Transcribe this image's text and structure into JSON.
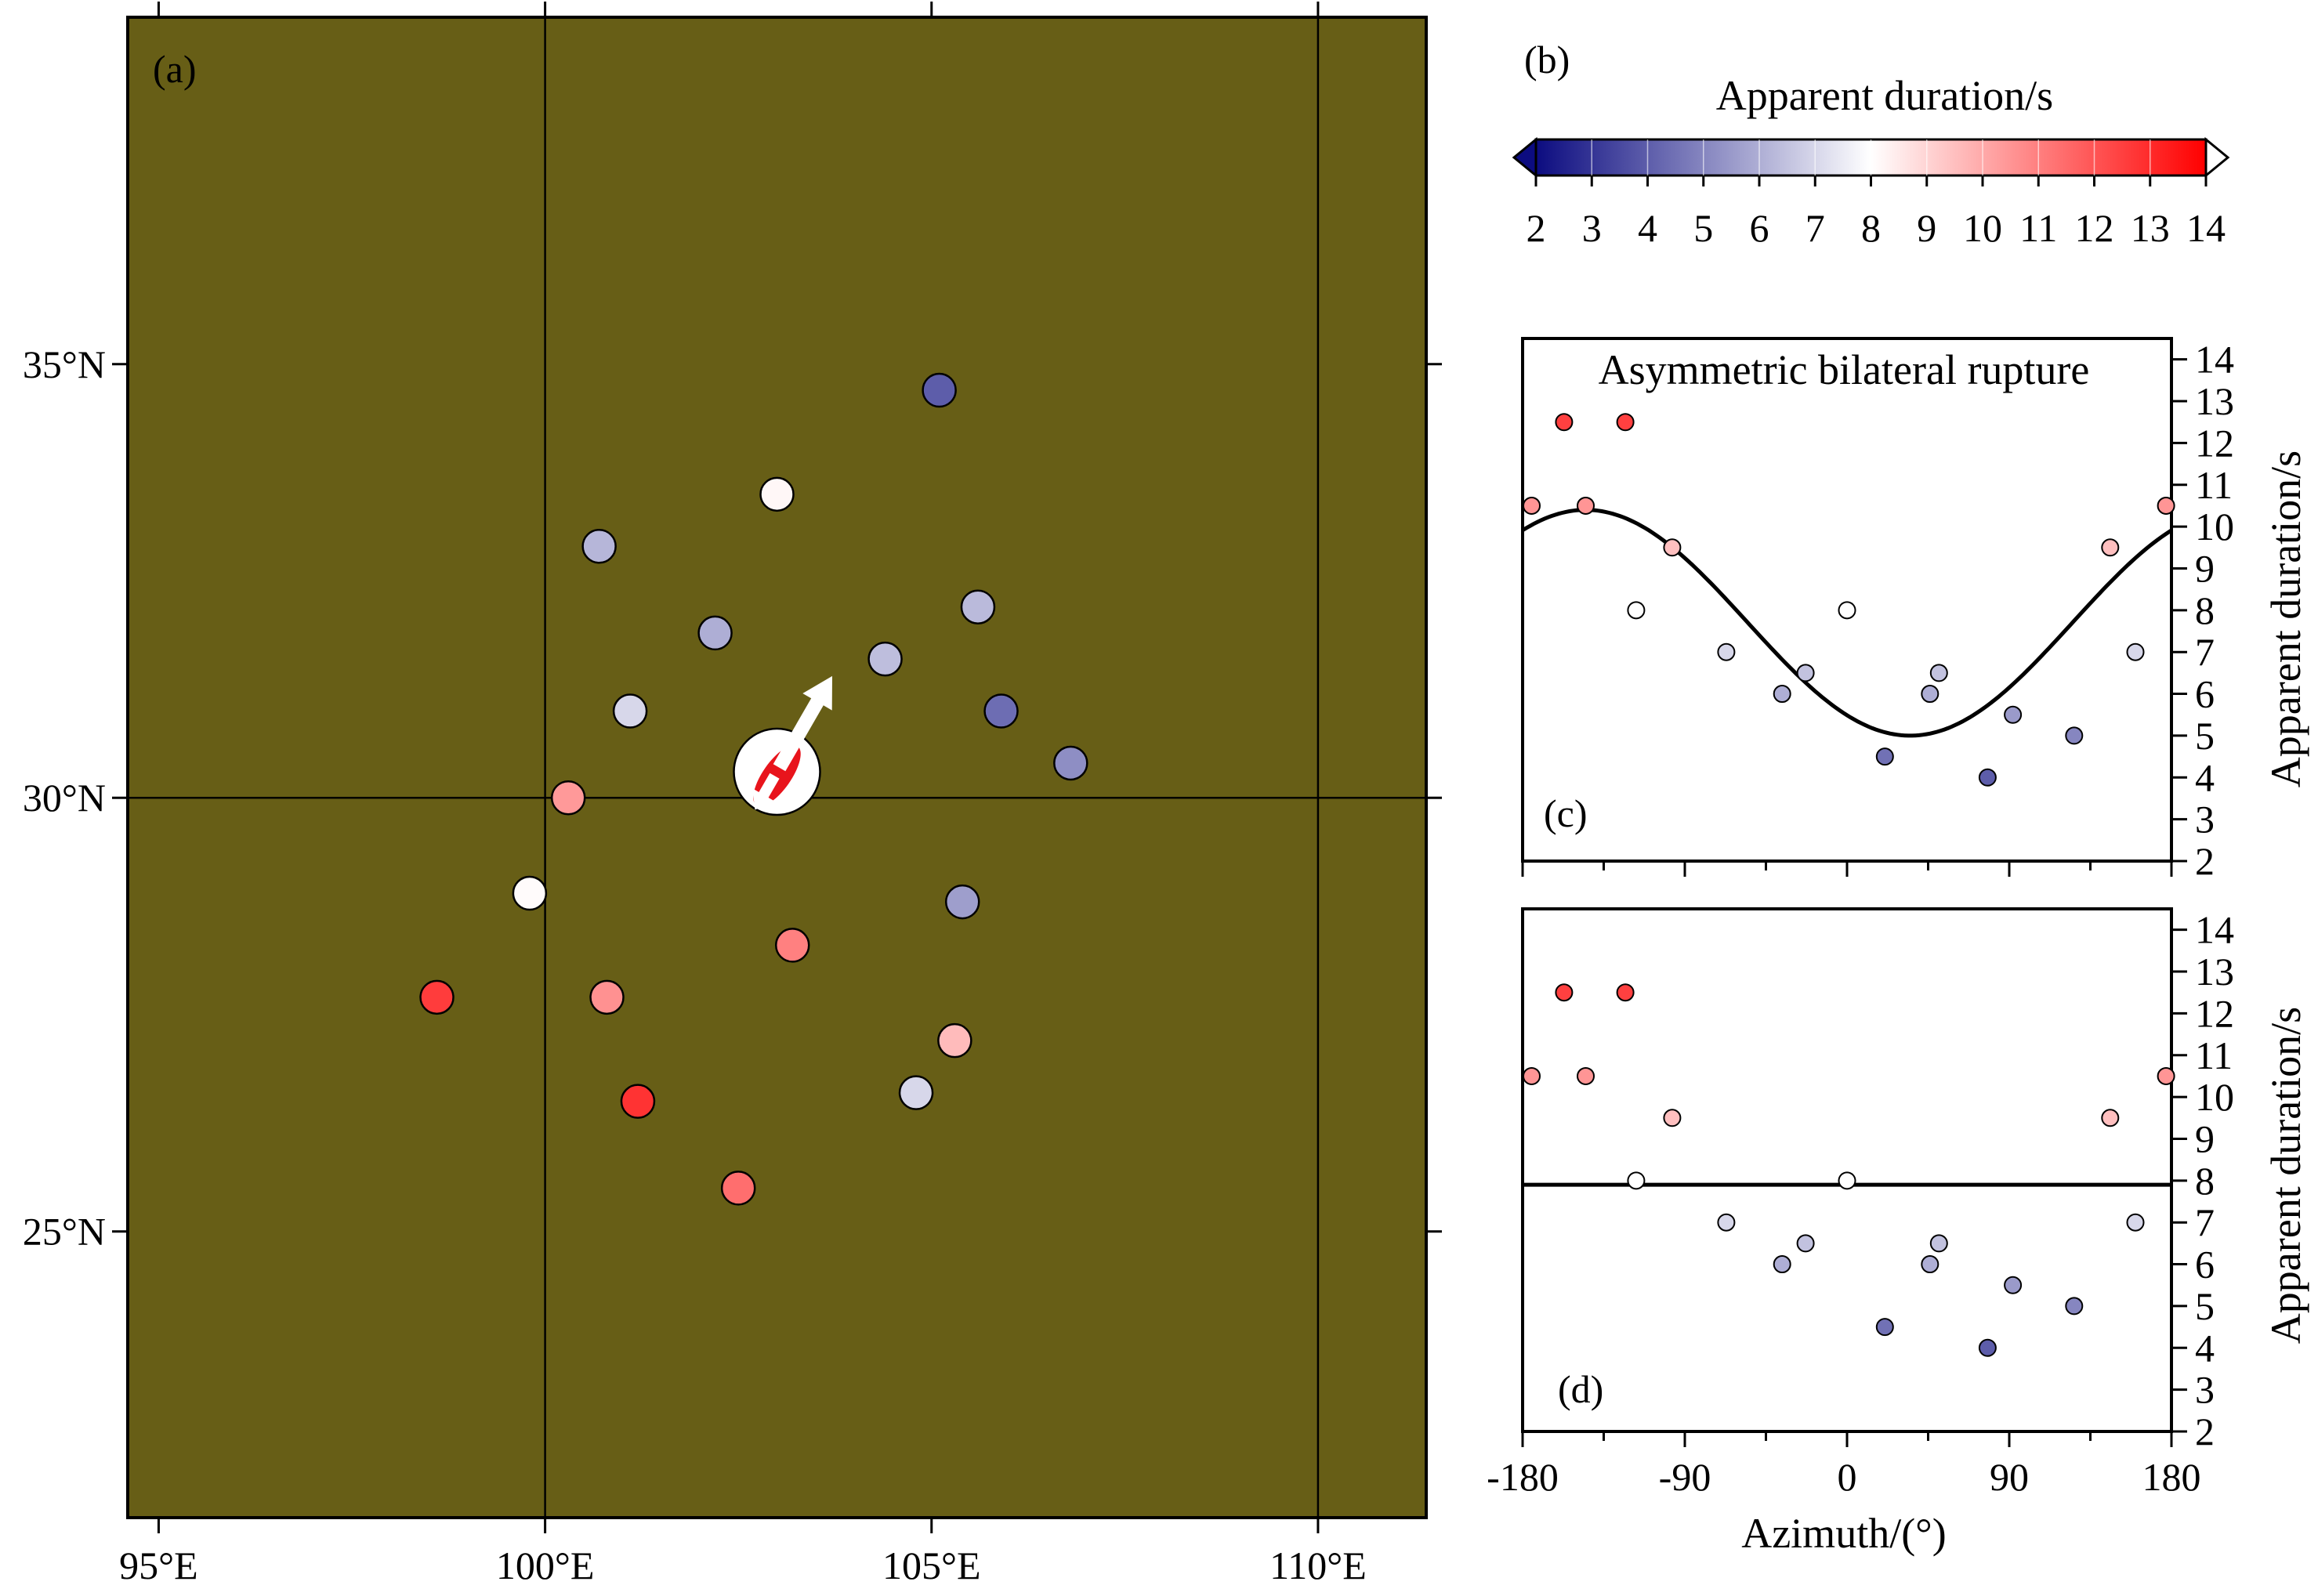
{
  "chart_data": [
    {
      "panel": "(a)",
      "type": "scatter",
      "map_background": "#675e16",
      "x_ticks": [
        "95°E",
        "100°E",
        "105°E",
        "110°E"
      ],
      "x_tick_values": [
        95,
        100,
        105,
        110
      ],
      "y_ticks": [
        "25°N",
        "30°N",
        "35°N"
      ],
      "y_tick_values": [
        25,
        30,
        35
      ],
      "xlim": [
        94.6,
        111.4
      ],
      "ylim": [
        21.7,
        39.0
      ],
      "grid_lines": {
        "lon": [
          100,
          110
        ],
        "lat": [
          30
        ]
      },
      "epicenter": {
        "lon": 103.0,
        "lat": 30.3
      },
      "rupture_arrows": {
        "long_direction_deg": 30,
        "short_direction_deg": 210
      },
      "stations": [
        {
          "lon": 105.1,
          "lat": 34.7,
          "duration": 4.0
        },
        {
          "lon": 103.0,
          "lat": 33.5,
          "duration": 8.2
        },
        {
          "lon": 100.7,
          "lat": 32.9,
          "duration": 6.2
        },
        {
          "lon": 105.6,
          "lat": 32.2,
          "duration": 6.3
        },
        {
          "lon": 102.2,
          "lat": 31.9,
          "duration": 6.0
        },
        {
          "lon": 104.4,
          "lat": 31.6,
          "duration": 6.4
        },
        {
          "lon": 105.9,
          "lat": 31.0,
          "duration": 4.4
        },
        {
          "lon": 101.1,
          "lat": 31.0,
          "duration": 7.0
        },
        {
          "lon": 106.8,
          "lat": 30.4,
          "duration": 5.2
        },
        {
          "lon": 100.3,
          "lat": 30.0,
          "duration": 10.4
        },
        {
          "lon": 99.8,
          "lat": 28.9,
          "duration": 8.1
        },
        {
          "lon": 105.4,
          "lat": 28.8,
          "duration": 5.6
        },
        {
          "lon": 103.2,
          "lat": 28.3,
          "duration": 11.0
        },
        {
          "lon": 98.6,
          "lat": 27.7,
          "duration": 12.6
        },
        {
          "lon": 100.8,
          "lat": 27.7,
          "duration": 10.6
        },
        {
          "lon": 105.3,
          "lat": 27.2,
          "duration": 9.6
        },
        {
          "lon": 104.8,
          "lat": 26.6,
          "duration": 7.0
        },
        {
          "lon": 101.2,
          "lat": 26.5,
          "duration": 12.8
        },
        {
          "lon": 102.5,
          "lat": 25.5,
          "duration": 11.4
        }
      ]
    },
    {
      "panel": "(b)",
      "type": "colorbar",
      "title": "Apparent duration/s",
      "range": [
        2,
        14
      ],
      "ticks": [
        "2",
        "3",
        "4",
        "5",
        "6",
        "7",
        "8",
        "9",
        "10",
        "11",
        "12",
        "13",
        "14"
      ],
      "colors": {
        "low": "#0c0c80",
        "mid": "#ffffff",
        "high": "#ff0000"
      },
      "midpoint": 8
    },
    {
      "panel": "(c)",
      "type": "scatter",
      "annotation": "Asymmetric bilateral rupture",
      "ylabel": "Apparent duration/s",
      "xlim": [
        -180,
        180
      ],
      "ylim": [
        2,
        14.5
      ],
      "y_ticks": [
        "2",
        "3",
        "4",
        "5",
        "6",
        "7",
        "8",
        "9",
        "10",
        "11",
        "12",
        "13",
        "14"
      ],
      "fit_curve": {
        "type": "cosine",
        "mean": 7.7,
        "amplitude": 2.7,
        "min_azimuth": 35
      },
      "points": [
        {
          "azimuth": -175,
          "duration": 10.5
        },
        {
          "azimuth": -157,
          "duration": 12.5
        },
        {
          "azimuth": -145,
          "duration": 10.5
        },
        {
          "azimuth": -123,
          "duration": 12.5
        },
        {
          "azimuth": -97,
          "duration": 9.5
        },
        {
          "azimuth": -117,
          "duration": 8.0
        },
        {
          "azimuth": -67,
          "duration": 7.0
        },
        {
          "azimuth": -36,
          "duration": 6.0
        },
        {
          "azimuth": -23,
          "duration": 6.5
        },
        {
          "azimuth": 0,
          "duration": 8.0
        },
        {
          "azimuth": 21,
          "duration": 4.5
        },
        {
          "azimuth": 46,
          "duration": 6.0
        },
        {
          "azimuth": 51,
          "duration": 6.5
        },
        {
          "azimuth": 78,
          "duration": 4.0
        },
        {
          "azimuth": 92,
          "duration": 5.5
        },
        {
          "azimuth": 126,
          "duration": 5.0
        },
        {
          "azimuth": 146,
          "duration": 9.5
        },
        {
          "azimuth": 160,
          "duration": 7.0
        },
        {
          "azimuth": 177,
          "duration": 10.5
        }
      ]
    },
    {
      "panel": "(d)",
      "type": "scatter",
      "ylabel": "Apparent duration/s",
      "xlabel": "Azimuth/(°)",
      "xlim": [
        -180,
        180
      ],
      "ylim": [
        2,
        14.5
      ],
      "x_ticks": [
        "-180",
        "-90",
        "0",
        "90",
        "180"
      ],
      "x_tick_values": [
        -180,
        -90,
        0,
        90,
        180
      ],
      "y_ticks": [
        "2",
        "3",
        "4",
        "5",
        "6",
        "7",
        "8",
        "9",
        "10",
        "11",
        "12",
        "13",
        "14"
      ],
      "fit_line": {
        "type": "constant",
        "value": 7.9
      },
      "points": [
        {
          "azimuth": -175,
          "duration": 10.5
        },
        {
          "azimuth": -157,
          "duration": 12.5
        },
        {
          "azimuth": -145,
          "duration": 10.5
        },
        {
          "azimuth": -123,
          "duration": 12.5
        },
        {
          "azimuth": -97,
          "duration": 9.5
        },
        {
          "azimuth": -117,
          "duration": 8.0
        },
        {
          "azimuth": -67,
          "duration": 7.0
        },
        {
          "azimuth": -36,
          "duration": 6.0
        },
        {
          "azimuth": -23,
          "duration": 6.5
        },
        {
          "azimuth": 0,
          "duration": 8.0
        },
        {
          "azimuth": 21,
          "duration": 4.5
        },
        {
          "azimuth": 46,
          "duration": 6.0
        },
        {
          "azimuth": 51,
          "duration": 6.5
        },
        {
          "azimuth": 78,
          "duration": 4.0
        },
        {
          "azimuth": 92,
          "duration": 5.5
        },
        {
          "azimuth": 126,
          "duration": 5.0
        },
        {
          "azimuth": 146,
          "duration": 9.5
        },
        {
          "azimuth": 160,
          "duration": 7.0
        },
        {
          "azimuth": 177,
          "duration": 10.5
        }
      ]
    }
  ]
}
